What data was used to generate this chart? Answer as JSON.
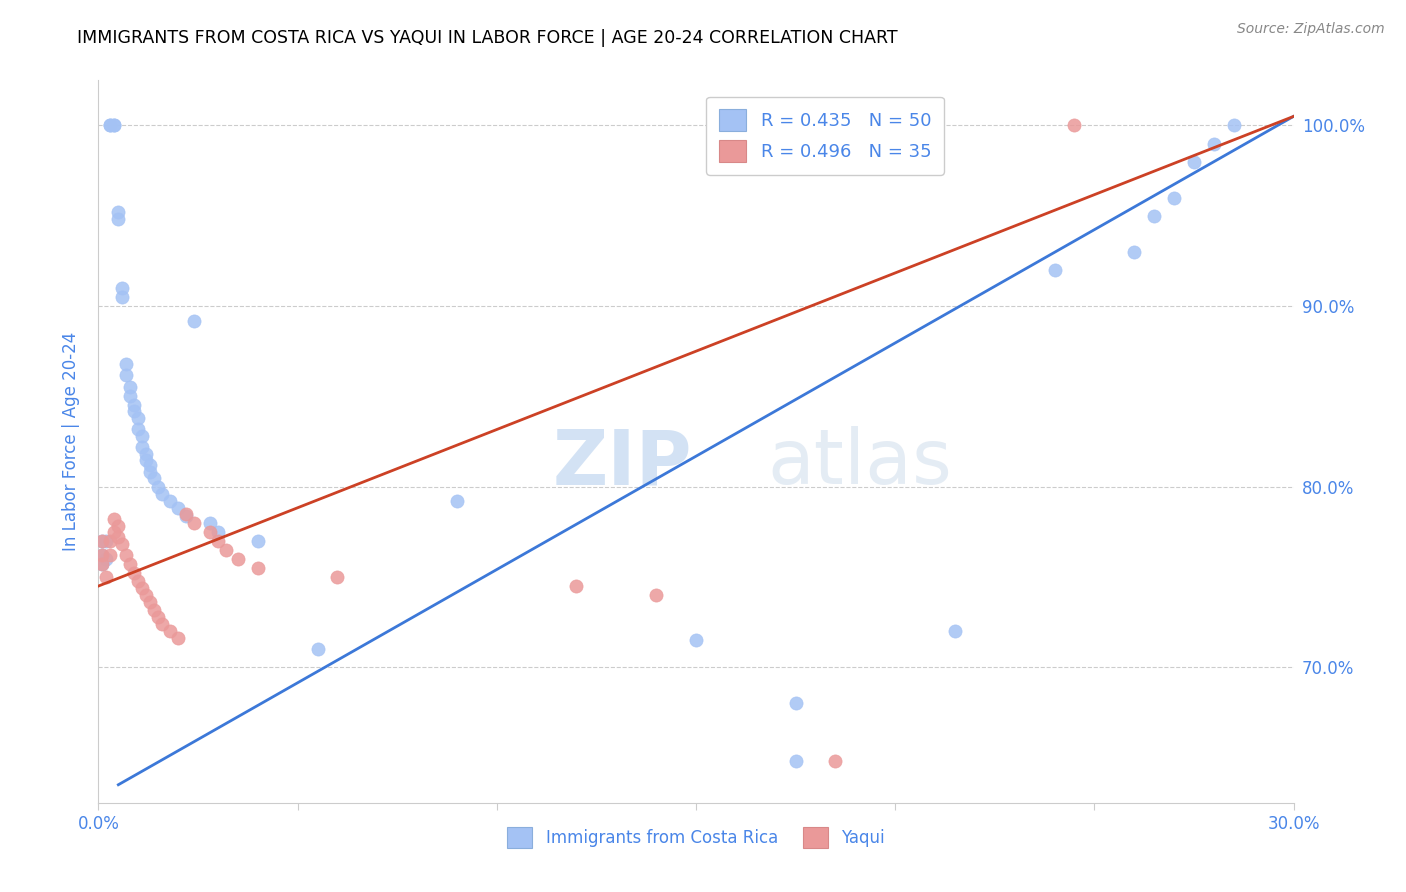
{
  "title": "IMMIGRANTS FROM COSTA RICA VS YAQUI IN LABOR FORCE | AGE 20-24 CORRELATION CHART",
  "source_text": "Source: ZipAtlas.com",
  "ylabel": "In Labor Force | Age 20-24",
  "watermark": "ZIPatlas",
  "xlim": [
    0.0,
    0.3
  ],
  "ylim": [
    0.625,
    1.025
  ],
  "blue_color": "#a4c2f4",
  "pink_color": "#ea9999",
  "blue_line_color": "#3c78d8",
  "pink_line_color": "#cc4125",
  "axis_label_color": "#4a86e8",
  "grid_color": "#cccccc",
  "legend1_labels": [
    "R = 0.435   N = 50",
    "R = 0.496   N = 35"
  ],
  "legend2_labels": [
    "Immigrants from Costa Rica",
    "Yaqui"
  ],
  "blue_trend_x": [
    0.005,
    0.3
  ],
  "blue_trend_y": [
    0.635,
    1.005
  ],
  "pink_trend_x": [
    0.0,
    0.3
  ],
  "pink_trend_y": [
    0.745,
    1.005
  ],
  "blue_scatter": [
    [
      0.001,
      0.77
    ],
    [
      0.001,
      0.762
    ],
    [
      0.001,
      0.757
    ],
    [
      0.002,
      0.77
    ],
    [
      0.002,
      0.76
    ],
    [
      0.003,
      1.0
    ],
    [
      0.003,
      1.0
    ],
    [
      0.004,
      1.0
    ],
    [
      0.004,
      1.0
    ],
    [
      0.005,
      0.952
    ],
    [
      0.005,
      0.948
    ],
    [
      0.006,
      0.91
    ],
    [
      0.006,
      0.905
    ],
    [
      0.007,
      0.868
    ],
    [
      0.007,
      0.862
    ],
    [
      0.008,
      0.855
    ],
    [
      0.008,
      0.85
    ],
    [
      0.009,
      0.845
    ],
    [
      0.009,
      0.842
    ],
    [
      0.01,
      0.838
    ],
    [
      0.01,
      0.832
    ],
    [
      0.011,
      0.828
    ],
    [
      0.011,
      0.822
    ],
    [
      0.012,
      0.818
    ],
    [
      0.012,
      0.815
    ],
    [
      0.013,
      0.812
    ],
    [
      0.013,
      0.808
    ],
    [
      0.014,
      0.805
    ],
    [
      0.015,
      0.8
    ],
    [
      0.016,
      0.796
    ],
    [
      0.018,
      0.792
    ],
    [
      0.02,
      0.788
    ],
    [
      0.022,
      0.784
    ],
    [
      0.024,
      0.892
    ],
    [
      0.028,
      0.78
    ],
    [
      0.03,
      0.775
    ],
    [
      0.04,
      0.77
    ],
    [
      0.055,
      0.71
    ],
    [
      0.09,
      0.792
    ],
    [
      0.15,
      0.715
    ],
    [
      0.175,
      0.68
    ],
    [
      0.175,
      0.648
    ],
    [
      0.215,
      0.72
    ],
    [
      0.24,
      0.92
    ],
    [
      0.26,
      0.93
    ],
    [
      0.265,
      0.95
    ],
    [
      0.27,
      0.96
    ],
    [
      0.275,
      0.98
    ],
    [
      0.28,
      0.99
    ],
    [
      0.285,
      1.0
    ]
  ],
  "pink_scatter": [
    [
      0.001,
      0.77
    ],
    [
      0.001,
      0.762
    ],
    [
      0.001,
      0.757
    ],
    [
      0.002,
      0.75
    ],
    [
      0.003,
      0.77
    ],
    [
      0.003,
      0.762
    ],
    [
      0.004,
      0.782
    ],
    [
      0.004,
      0.775
    ],
    [
      0.005,
      0.778
    ],
    [
      0.005,
      0.772
    ],
    [
      0.006,
      0.768
    ],
    [
      0.007,
      0.762
    ],
    [
      0.008,
      0.757
    ],
    [
      0.009,
      0.752
    ],
    [
      0.01,
      0.748
    ],
    [
      0.011,
      0.744
    ],
    [
      0.012,
      0.74
    ],
    [
      0.013,
      0.736
    ],
    [
      0.014,
      0.732
    ],
    [
      0.015,
      0.728
    ],
    [
      0.016,
      0.724
    ],
    [
      0.018,
      0.72
    ],
    [
      0.02,
      0.716
    ],
    [
      0.022,
      0.785
    ],
    [
      0.024,
      0.78
    ],
    [
      0.028,
      0.775
    ],
    [
      0.03,
      0.77
    ],
    [
      0.032,
      0.765
    ],
    [
      0.035,
      0.76
    ],
    [
      0.04,
      0.755
    ],
    [
      0.06,
      0.75
    ],
    [
      0.12,
      0.745
    ],
    [
      0.14,
      0.74
    ],
    [
      0.185,
      0.648
    ],
    [
      0.245,
      1.0
    ]
  ]
}
